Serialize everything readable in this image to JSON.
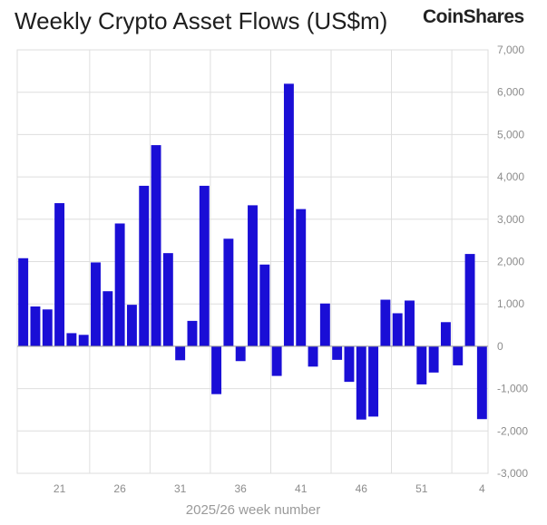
{
  "header": {
    "title": "Weekly Crypto Asset Flows (US$m)",
    "brand": "CoinShares"
  },
  "chart_data": {
    "type": "bar",
    "title": "Weekly Crypto Asset Flows (US$m)",
    "xlabel": "2025/26 week number",
    "ylabel": "",
    "ylim": [
      -3000,
      7000
    ],
    "yticks": [
      -3000,
      -2000,
      -1000,
      0,
      1000,
      2000,
      3000,
      4000,
      5000,
      6000,
      7000
    ],
    "ytick_labels": [
      "-3,000",
      "-2,000",
      "-1,000",
      "0",
      "1,000",
      "2,000",
      "3,000",
      "4,000",
      "5,000",
      "6,000",
      "7,000"
    ],
    "xtick_labels": [
      {
        "week": 21,
        "label": "21"
      },
      {
        "week": 26,
        "label": "26"
      },
      {
        "week": 31,
        "label": "31"
      },
      {
        "week": 36,
        "label": "36"
      },
      {
        "week": 41,
        "label": "41"
      },
      {
        "week": 46,
        "label": "46"
      },
      {
        "week": 51,
        "label": "51"
      },
      {
        "week": 56,
        "label": "4"
      }
    ],
    "vgrid_weeks": [
      23.5,
      28.5,
      33.5,
      38.5,
      43.5,
      48.5,
      53.5
    ],
    "grid": true,
    "bar_color": "#1a0ed6",
    "weeks": [
      18,
      19,
      20,
      21,
      22,
      23,
      24,
      25,
      26,
      27,
      28,
      29,
      30,
      31,
      32,
      33,
      34,
      35,
      36,
      37,
      38,
      39,
      40,
      41,
      42,
      43,
      44,
      45,
      46,
      47,
      48,
      49,
      50,
      51,
      52,
      53,
      54,
      55,
      56
    ],
    "values": [
      2080,
      940,
      870,
      3380,
      310,
      270,
      1980,
      1300,
      2900,
      980,
      3790,
      4750,
      2200,
      -330,
      600,
      3790,
      -1130,
      2540,
      -350,
      3330,
      1930,
      -700,
      6200,
      3240,
      -480,
      1010,
      -320,
      -840,
      -1730,
      -1660,
      1100,
      780,
      1080,
      -900,
      -620,
      570,
      -450,
      2180,
      -1720
    ]
  }
}
